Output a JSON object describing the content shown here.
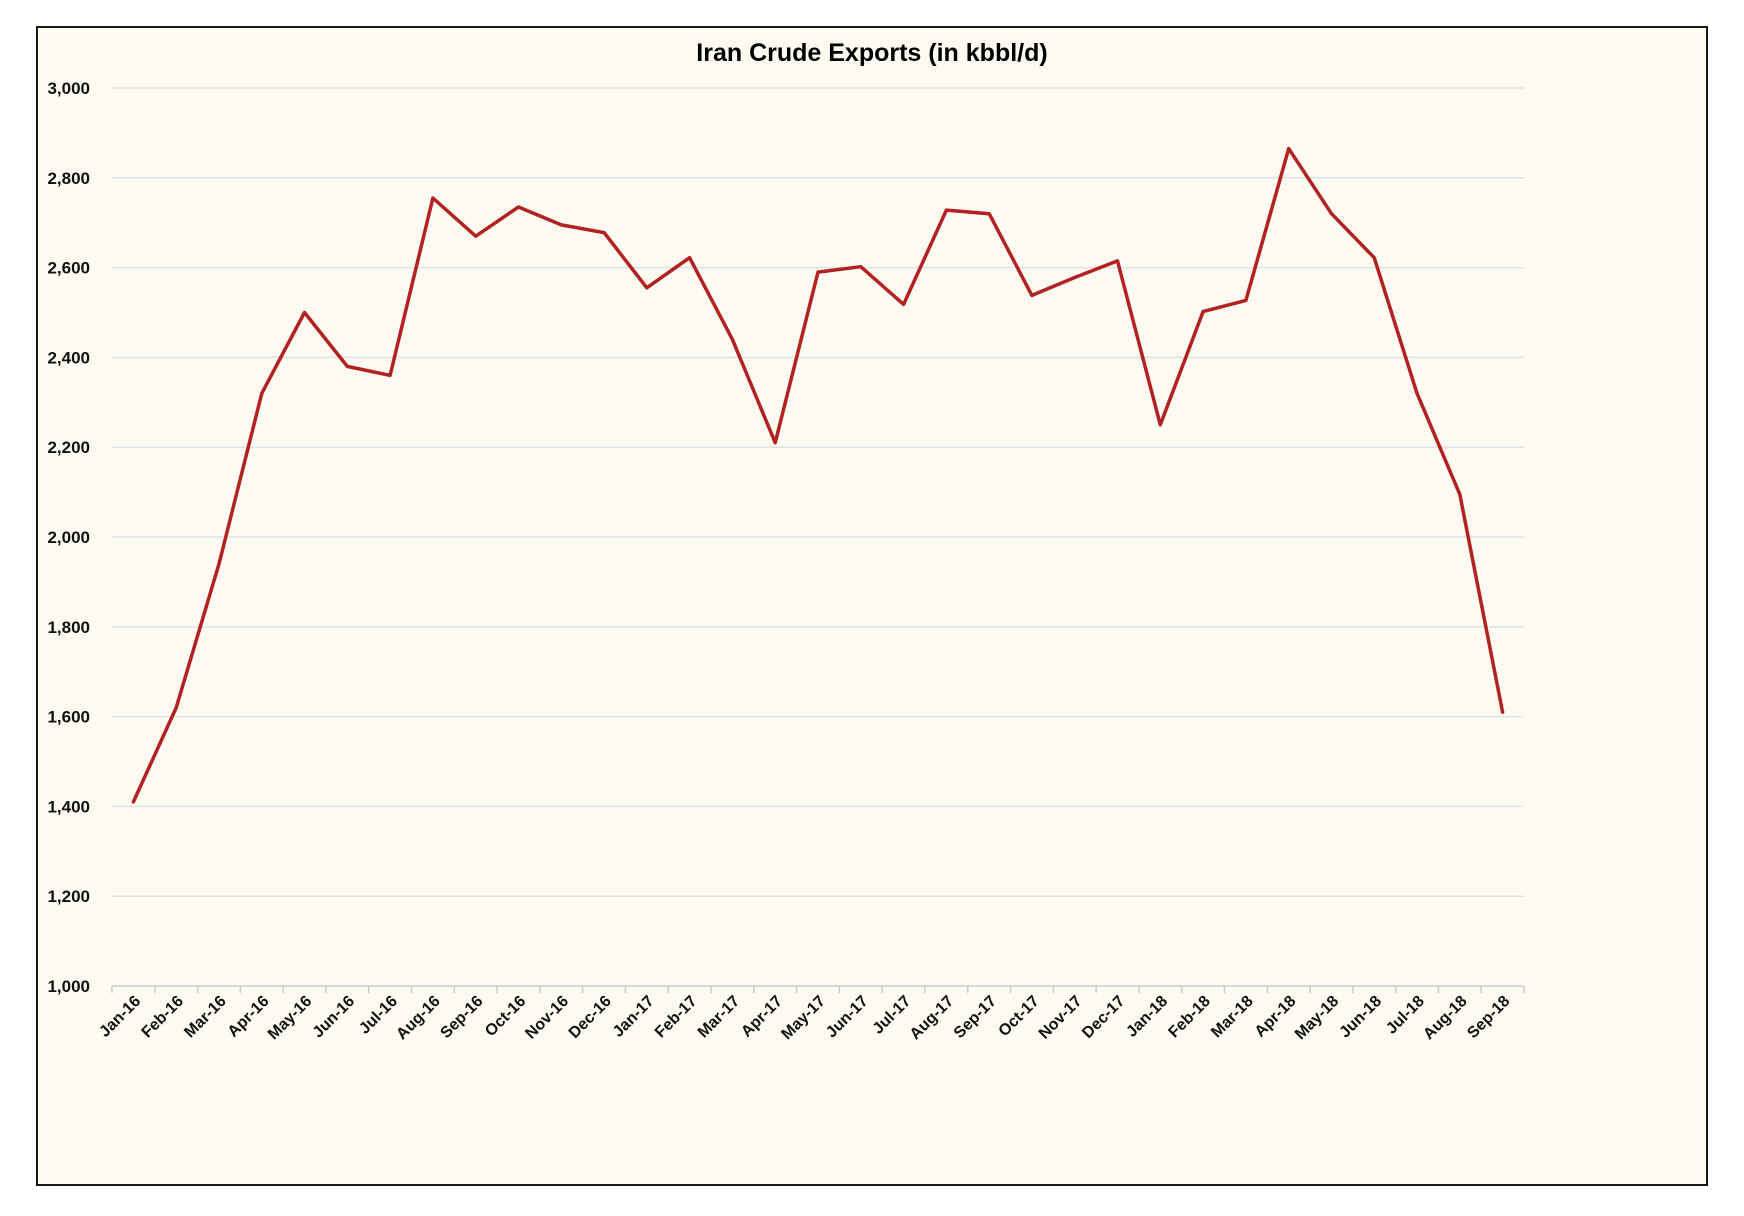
{
  "chart_data": {
    "type": "line",
    "title": "Iran Crude Exports (in kbbl/d)",
    "xlabel": "",
    "ylabel": "",
    "ylim": [
      1000,
      3000
    ],
    "yticks": [
      1000,
      1200,
      1400,
      1600,
      1800,
      2000,
      2200,
      2400,
      2600,
      2800,
      3000
    ],
    "ytick_labels": [
      "1,000",
      "1,200",
      "1,400",
      "1,600",
      "1,800",
      "2,000",
      "2,200",
      "2,400",
      "2,600",
      "2,800",
      "3,000"
    ],
    "grid": true,
    "categories": [
      "Jan-16",
      "Feb-16",
      "Mar-16",
      "Apr-16",
      "May-16",
      "Jun-16",
      "Jul-16",
      "Aug-16",
      "Sep-16",
      "Oct-16",
      "Nov-16",
      "Dec-16",
      "Jan-17",
      "Feb-17",
      "Mar-17",
      "Apr-17",
      "May-17",
      "Jun-17",
      "Jul-17",
      "Aug-17",
      "Sep-17",
      "Oct-17",
      "Nov-17",
      "Dec-17",
      "Jan-18",
      "Feb-18",
      "Mar-18",
      "Apr-18",
      "May-18",
      "Jun-18",
      "Jul-18",
      "Aug-18",
      "Sep-18"
    ],
    "series": [
      {
        "color": "#b22222",
        "values": [
          1410,
          1620,
          1940,
          2320,
          2500,
          2380,
          2360,
          2755,
          2670,
          2735,
          2695,
          2678,
          2555,
          2622,
          2440,
          2210,
          2590,
          2602,
          2518,
          2728,
          2720,
          2538,
          2578,
          2615,
          2250,
          2502,
          2527,
          2865,
          2720,
          2622,
          2320,
          2095,
          1610
        ]
      }
    ]
  }
}
